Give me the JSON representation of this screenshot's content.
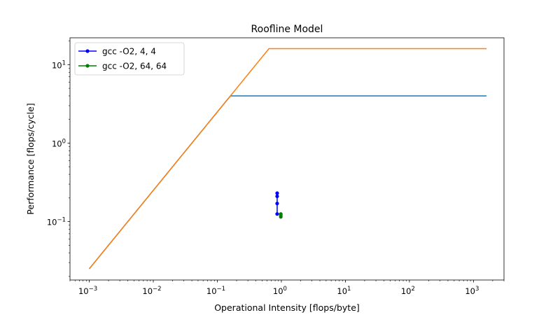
{
  "chart_data": {
    "type": "line",
    "title": "Roofline Model",
    "xlabel": "Operational Intensity [flops/byte]",
    "ylabel": "Performance [flops/cycle]",
    "xscale": "log",
    "yscale": "log",
    "xlim": [
      0.0005,
      3000
    ],
    "ylim": [
      0.018,
      22
    ],
    "grid": false,
    "legend_position": "upper-left",
    "x_ticks": [
      {
        "value": 0.001,
        "base": "10",
        "exp": "−3"
      },
      {
        "value": 0.01,
        "base": "10",
        "exp": "−2"
      },
      {
        "value": 0.1,
        "base": "10",
        "exp": "−1"
      },
      {
        "value": 1,
        "base": "10",
        "exp": "0"
      },
      {
        "value": 10,
        "base": "10",
        "exp": "1"
      },
      {
        "value": 100,
        "base": "10",
        "exp": "2"
      },
      {
        "value": 1000,
        "base": "10",
        "exp": "3"
      }
    ],
    "y_ticks": [
      {
        "value": 0.1,
        "base": "10",
        "exp": "−1"
      },
      {
        "value": 1,
        "base": "10",
        "exp": "0"
      },
      {
        "value": 10,
        "base": "10",
        "exp": "1"
      }
    ],
    "rooflines": [
      {
        "color": "#1f77b4",
        "points": [
          [
            0.001,
            0.025
          ],
          [
            0.16,
            4.0
          ],
          [
            1600,
            4.0
          ]
        ]
      },
      {
        "color": "#ff7f0e",
        "points": [
          [
            0.001,
            0.025
          ],
          [
            0.64,
            16.0
          ],
          [
            1600,
            16.0
          ]
        ]
      }
    ],
    "series": [
      {
        "name": "gcc -O2, 4, 4",
        "color": "#0000ff",
        "points": [
          [
            0.86,
            0.125
          ],
          [
            0.86,
            0.17
          ],
          [
            0.86,
            0.21
          ],
          [
            0.86,
            0.23
          ]
        ]
      },
      {
        "name": "gcc -O2, 64, 64",
        "color": "#008000",
        "points": [
          [
            0.98,
            0.115
          ],
          [
            0.98,
            0.12
          ],
          [
            0.98,
            0.125
          ]
        ]
      }
    ]
  }
}
